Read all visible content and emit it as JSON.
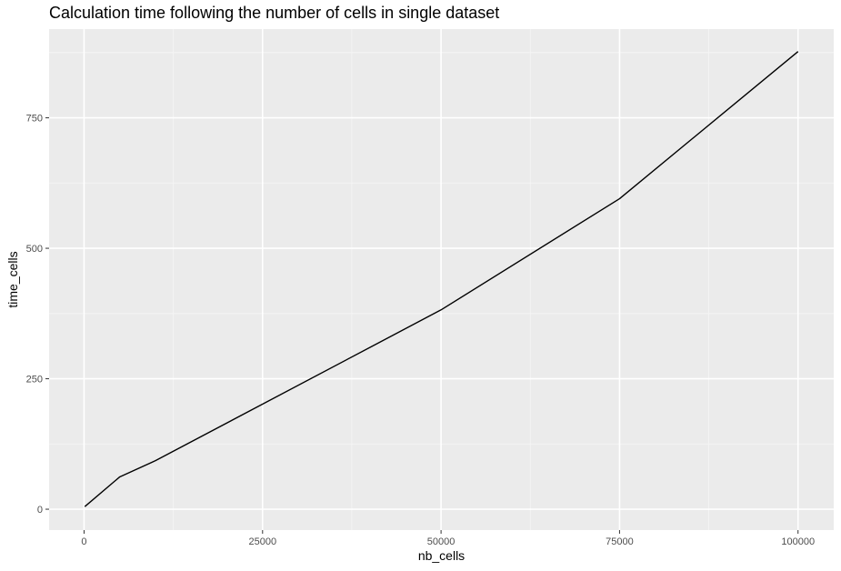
{
  "chart_data": {
    "type": "line",
    "title": "Calculation time following the number of cells in single dataset",
    "xlabel": "nb_cells",
    "ylabel": "time_cells",
    "x": [
      100,
      5000,
      10000,
      50000,
      75000,
      100000
    ],
    "series": [
      {
        "values": [
          5,
          62,
          93,
          382,
          595,
          877
        ]
      }
    ],
    "xlim": [
      -4900,
      105000
    ],
    "ylim": [
      -40,
      920
    ],
    "x_ticks": [
      0,
      25000,
      50000,
      75000,
      100000
    ],
    "x_tick_labels": [
      "0",
      "25000",
      "50000",
      "75000",
      "100000"
    ],
    "x_minor_ticks": [
      12500,
      37500,
      62500,
      87500
    ],
    "y_ticks": [
      0,
      250,
      500,
      750
    ],
    "y_tick_labels": [
      "0",
      "250",
      "500",
      "750"
    ],
    "y_minor_ticks": [
      125,
      375,
      625,
      875
    ],
    "grid": true,
    "legend": "none",
    "colors": {
      "panel_background": "#ebebeb",
      "grid_major": "#ffffff",
      "grid_minor": "#f5f5f5",
      "line": "#000000",
      "tick_text": "#4d4d4d"
    }
  }
}
